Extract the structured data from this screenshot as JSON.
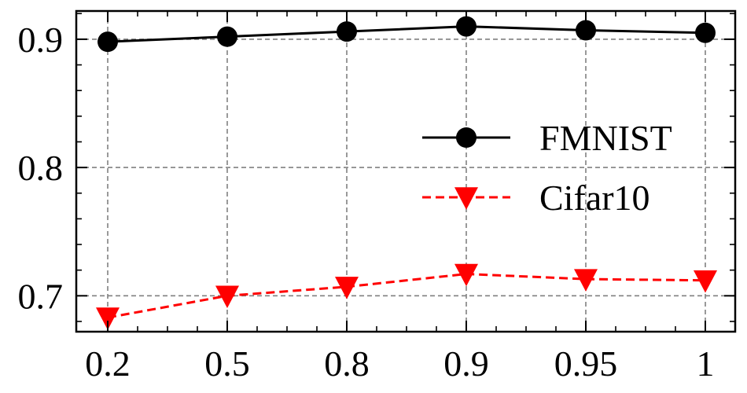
{
  "chart_data": {
    "type": "line",
    "categories": [
      "0.2",
      "0.5",
      "0.8",
      "0.9",
      "0.95",
      "1"
    ],
    "ylim": [
      0.672,
      0.922
    ],
    "yticks": [
      0.7,
      0.8,
      0.9
    ],
    "ytick_labels": [
      "0.7",
      "0.8",
      "0.9"
    ],
    "grid": true,
    "legend_position": "right-center",
    "series": [
      {
        "name": "FMNIST",
        "values": [
          0.898,
          0.902,
          0.906,
          0.91,
          0.907,
          0.905
        ],
        "color": "#000000",
        "line_style": "solid",
        "marker": "circle"
      },
      {
        "name": "Cifar10",
        "values": [
          0.683,
          0.7,
          0.707,
          0.717,
          0.713,
          0.712
        ],
        "color": "#ff0000",
        "line_style": "dashed",
        "marker": "triangle-down"
      }
    ]
  }
}
